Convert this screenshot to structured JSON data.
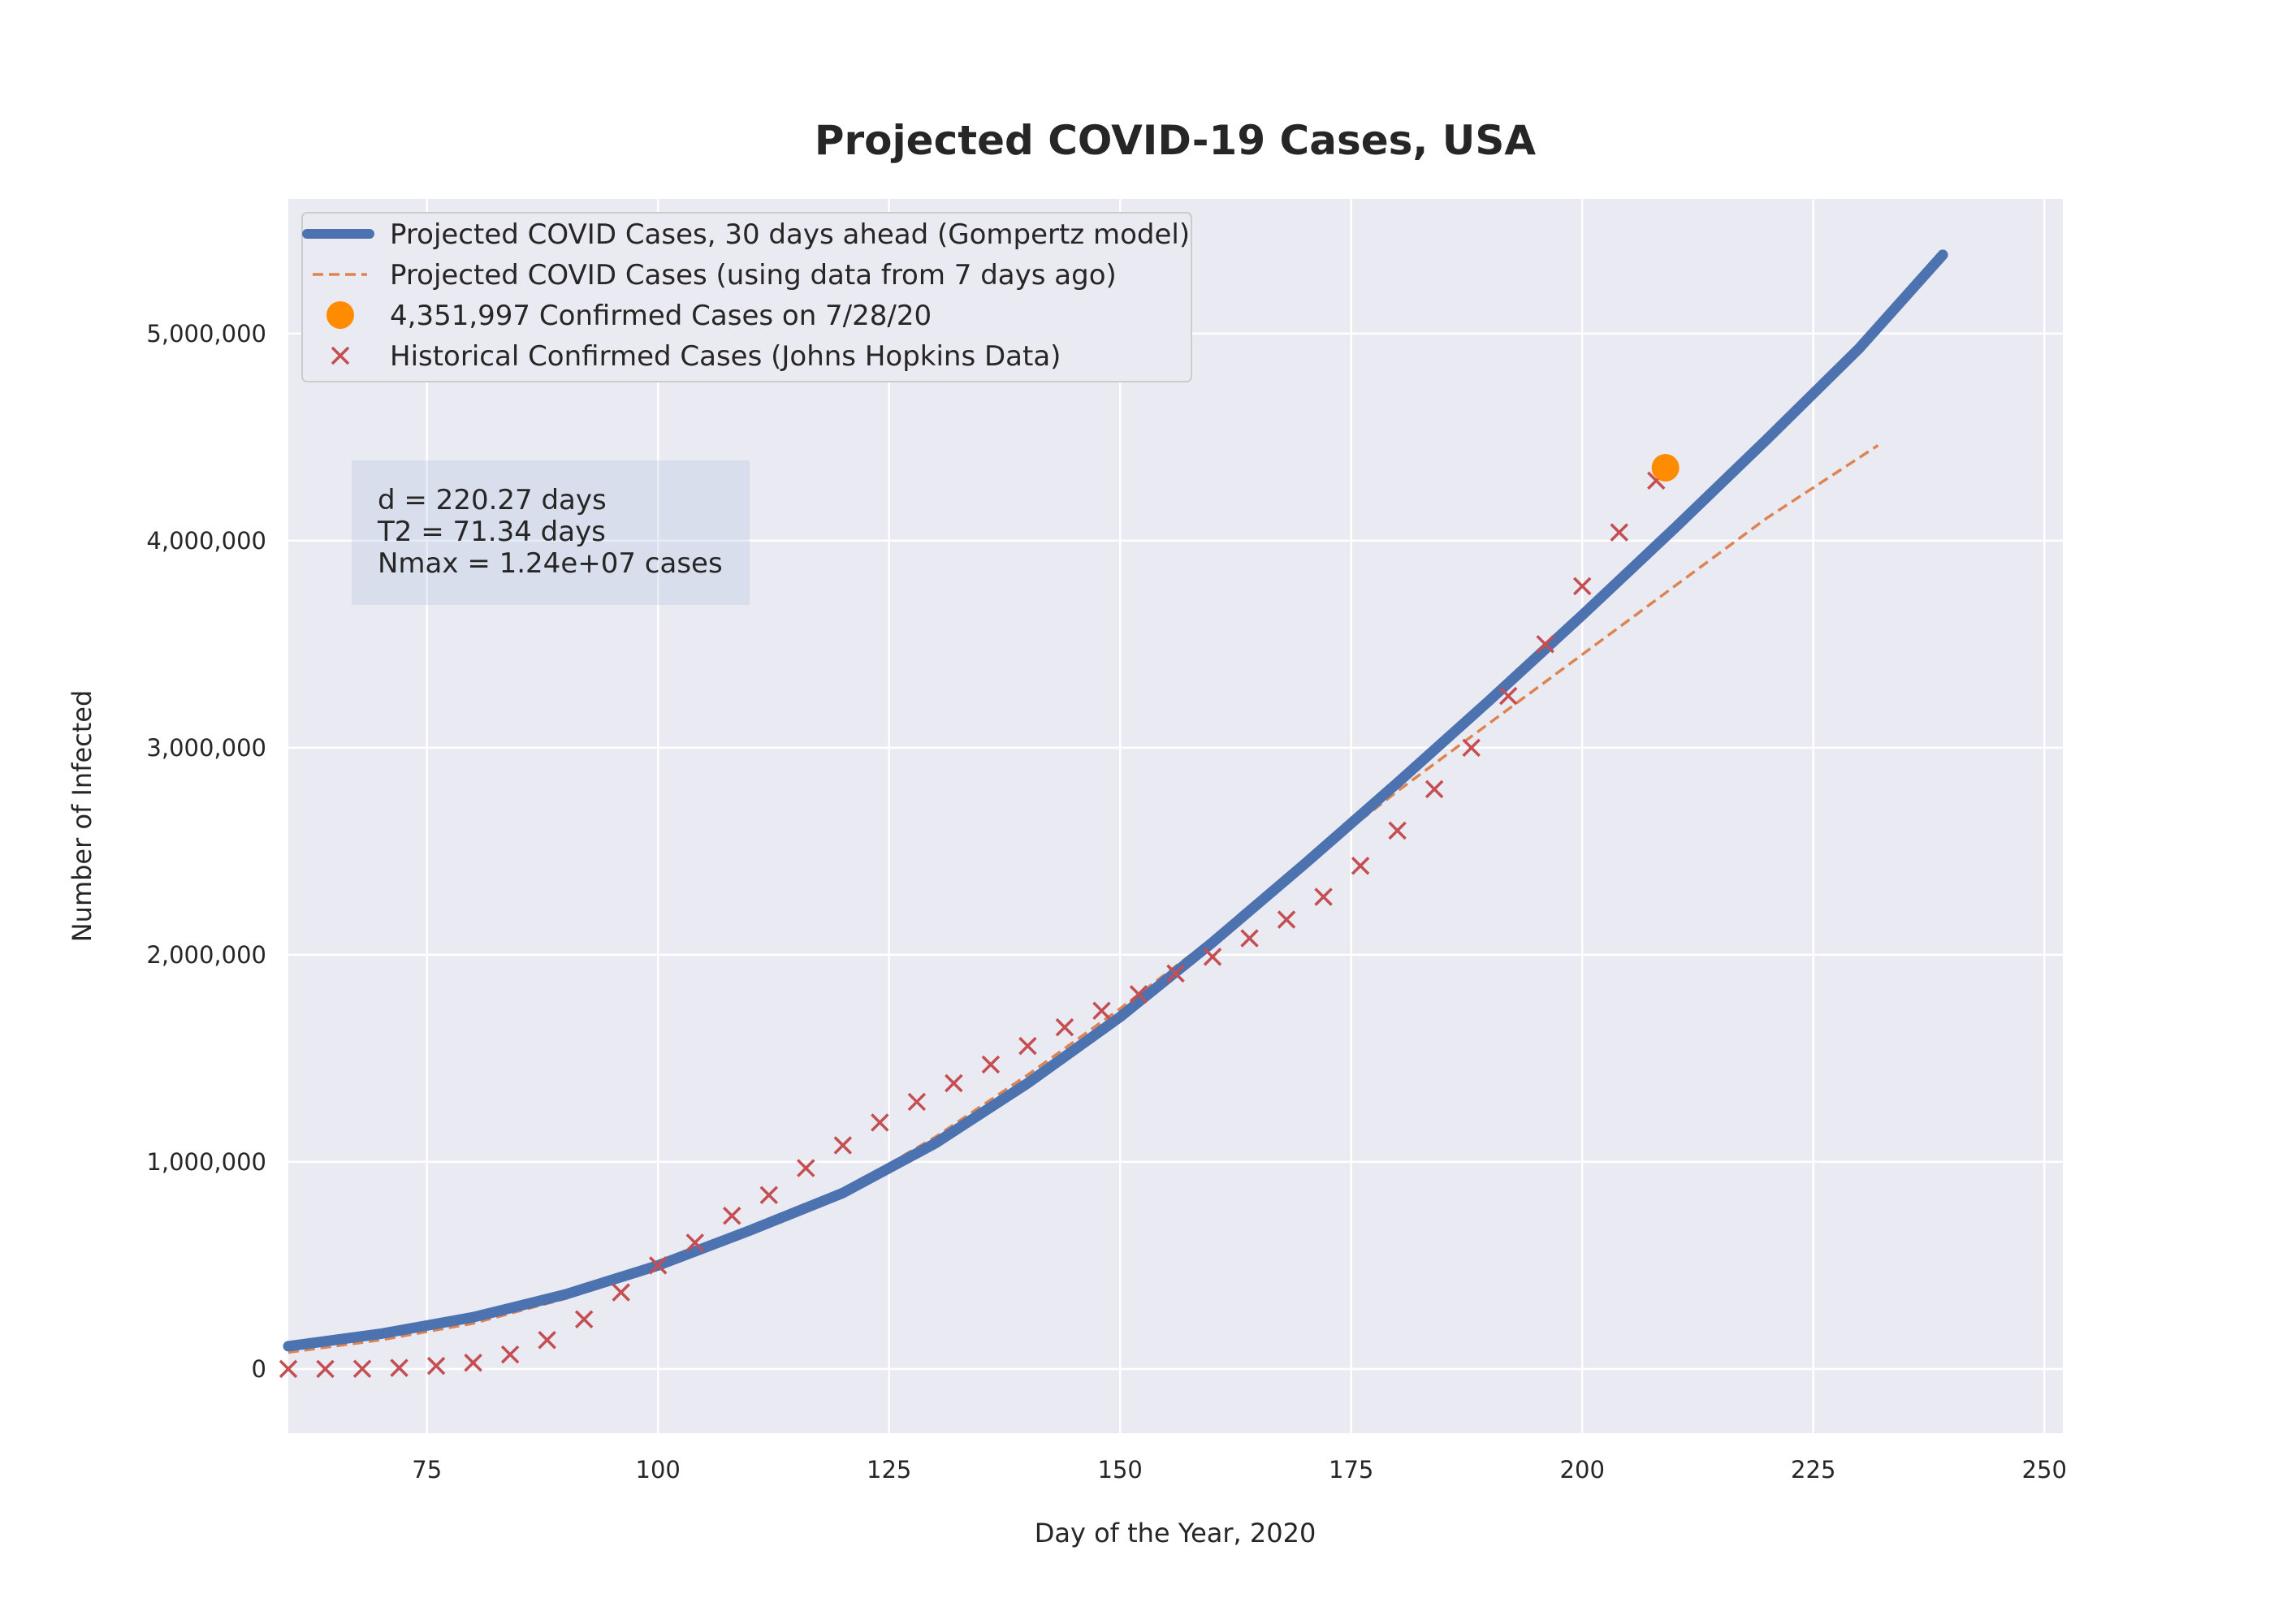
{
  "chart_data": {
    "type": "line",
    "title": "Projected COVID-19 Cases, USA",
    "xlabel": "Day of the Year, 2020",
    "ylabel": "Number of Infected",
    "xlim": [
      60,
      252
    ],
    "ylim": [
      -310000,
      5650000
    ],
    "x_ticks": [
      75,
      100,
      125,
      150,
      175,
      200,
      225,
      250
    ],
    "x_tick_labels": [
      "75",
      "100",
      "125",
      "150",
      "175",
      "200",
      "225",
      "250"
    ],
    "y_ticks": [
      0,
      1000000,
      2000000,
      3000000,
      4000000,
      5000000
    ],
    "y_tick_labels": [
      "0",
      "1,000,000",
      "2,000,000",
      "3,000,000",
      "4,000,000",
      "5,000,000"
    ],
    "grid": true,
    "legend_position": "top-left",
    "colors": {
      "background": "#eaeaf2",
      "grid": "#ffffff",
      "gompertz": "#4c72b0",
      "projection_7_days": "#dd8452",
      "latest": "#ff8c00",
      "historical": "#c44e52",
      "stats_box": "#b0c4de"
    },
    "series": [
      {
        "name": "Projected COVID Cases, 30 days ahead (Gompertz model)",
        "style": "solid-thick",
        "color": "#4c72b0",
        "x": [
          60,
          70,
          80,
          90,
          100,
          110,
          120,
          130,
          140,
          150,
          160,
          170,
          180,
          190,
          200,
          210,
          220,
          230,
          239
        ],
        "y": [
          110000,
          170000,
          250000,
          360000,
          500000,
          670000,
          850000,
          1090000,
          1380000,
          1700000,
          2060000,
          2440000,
          2830000,
          3230000,
          3640000,
          4060000,
          4490000,
          4930000,
          5380000
        ]
      },
      {
        "name": "Projected COVID Cases (using data from 7 days ago)",
        "style": "dashed",
        "color": "#dd8452",
        "x": [
          60,
          70,
          80,
          90,
          100,
          110,
          120,
          130,
          140,
          150,
          160,
          170,
          180,
          190,
          200,
          210,
          220,
          232
        ],
        "y": [
          80000,
          140000,
          220000,
          340000,
          490000,
          660000,
          860000,
          1120000,
          1420000,
          1740000,
          2080000,
          2440000,
          2790000,
          3120000,
          3450000,
          3780000,
          4110000,
          4460000
        ]
      },
      {
        "name": "4,351,997 Confirmed Cases on 7/28/20",
        "style": "dot",
        "color": "#ff8c00",
        "x": [
          209
        ],
        "y": [
          4351997
        ]
      },
      {
        "name": "Historical Confirmed Cases (Johns Hopkins Data)",
        "style": "x-marker",
        "color": "#c44e52",
        "x": [
          60,
          64,
          68,
          72,
          76,
          80,
          84,
          88,
          92,
          96,
          100,
          104,
          108,
          112,
          116,
          120,
          124,
          128,
          132,
          136,
          140,
          144,
          148,
          152,
          156,
          160,
          164,
          168,
          172,
          176,
          180,
          184,
          188,
          192,
          196,
          200,
          204,
          208
        ],
        "y": [
          100,
          200,
          1000,
          5000,
          15000,
          30000,
          70000,
          140000,
          240000,
          370000,
          500000,
          610000,
          740000,
          840000,
          970000,
          1080000,
          1190000,
          1290000,
          1380000,
          1470000,
          1560000,
          1650000,
          1730000,
          1810000,
          1910000,
          1990000,
          2080000,
          2170000,
          2280000,
          2430000,
          2600000,
          2800000,
          3000000,
          3250000,
          3500000,
          3780000,
          4040000,
          4290000
        ]
      }
    ],
    "stats_lines": [
      "d = 220.27 days",
      "T2 = 71.34 days",
      "Nmax = 1.24e+07 cases"
    ]
  }
}
